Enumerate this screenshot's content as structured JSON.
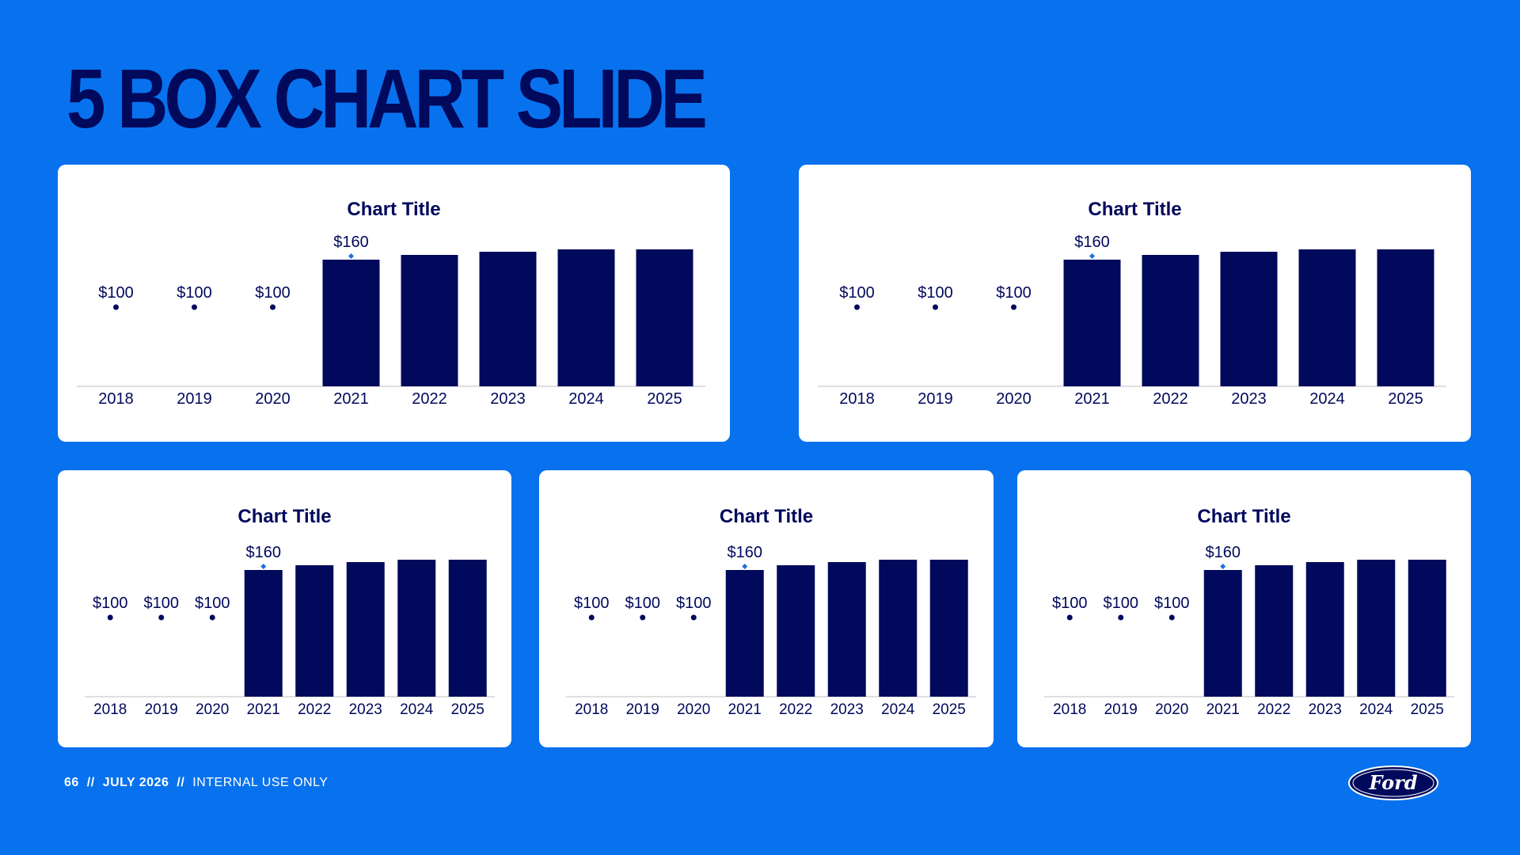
{
  "slide": {
    "title": "5 BOX CHART SLIDE"
  },
  "footer": {
    "page_number": "66",
    "separator": "//",
    "date": "JULY 2026",
    "classification": "INTERNAL USE ONLY"
  },
  "logo": {
    "text": "Ford"
  },
  "colors": {
    "background": "#0872EE",
    "bar": "#00095B",
    "title": "#00095B",
    "marker_dark": "#00095B",
    "marker_light": "#1F6FE0",
    "axis": "#BFBFBF"
  },
  "chart_data": [
    {
      "type": "bar",
      "title": "Chart Title",
      "categories": [
        "2018",
        "2019",
        "2020",
        "2021",
        "2022",
        "2023",
        "2024",
        "2025"
      ],
      "series": [
        {
          "values": [
            100,
            100,
            100,
            160,
            166,
            170,
            173,
            173
          ]
        }
      ],
      "data_labels": [
        "$100",
        "$100",
        "$100",
        "$160",
        "",
        "",
        "",
        ""
      ],
      "marker_only_categories": [
        "2018",
        "2019",
        "2020"
      ],
      "ylim": [
        0,
        190
      ]
    },
    {
      "type": "bar",
      "title": "Chart Title",
      "categories": [
        "2018",
        "2019",
        "2020",
        "2021",
        "2022",
        "2023",
        "2024",
        "2025"
      ],
      "series": [
        {
          "values": [
            100,
            100,
            100,
            160,
            166,
            170,
            173,
            173
          ]
        }
      ],
      "data_labels": [
        "$100",
        "$100",
        "$100",
        "$160",
        "",
        "",
        "",
        ""
      ],
      "marker_only_categories": [
        "2018",
        "2019",
        "2020"
      ],
      "ylim": [
        0,
        190
      ]
    },
    {
      "type": "bar",
      "title": "Chart Title",
      "categories": [
        "2018",
        "2019",
        "2020",
        "2021",
        "2022",
        "2023",
        "2024",
        "2025"
      ],
      "series": [
        {
          "values": [
            100,
            100,
            100,
            160,
            166,
            170,
            173,
            173
          ]
        }
      ],
      "data_labels": [
        "$100",
        "$100",
        "$100",
        "$160",
        "",
        "",
        "",
        ""
      ],
      "marker_only_categories": [
        "2018",
        "2019",
        "2020"
      ],
      "ylim": [
        0,
        190
      ]
    },
    {
      "type": "bar",
      "title": "Chart Title",
      "categories": [
        "2018",
        "2019",
        "2020",
        "2021",
        "2022",
        "2023",
        "2024",
        "2025"
      ],
      "series": [
        {
          "values": [
            100,
            100,
            100,
            160,
            166,
            170,
            173,
            173
          ]
        }
      ],
      "data_labels": [
        "$100",
        "$100",
        "$100",
        "$160",
        "",
        "",
        "",
        ""
      ],
      "marker_only_categories": [
        "2018",
        "2019",
        "2020"
      ],
      "ylim": [
        0,
        190
      ]
    },
    {
      "type": "bar",
      "title": "Chart Title",
      "categories": [
        "2018",
        "2019",
        "2020",
        "2021",
        "2022",
        "2023",
        "2024",
        "2025"
      ],
      "series": [
        {
          "values": [
            100,
            100,
            100,
            160,
            166,
            170,
            173,
            173
          ]
        }
      ],
      "data_labels": [
        "$100",
        "$100",
        "$100",
        "$160",
        "",
        "",
        "",
        ""
      ],
      "marker_only_categories": [
        "2018",
        "2019",
        "2020"
      ],
      "ylim": [
        0,
        190
      ]
    }
  ]
}
